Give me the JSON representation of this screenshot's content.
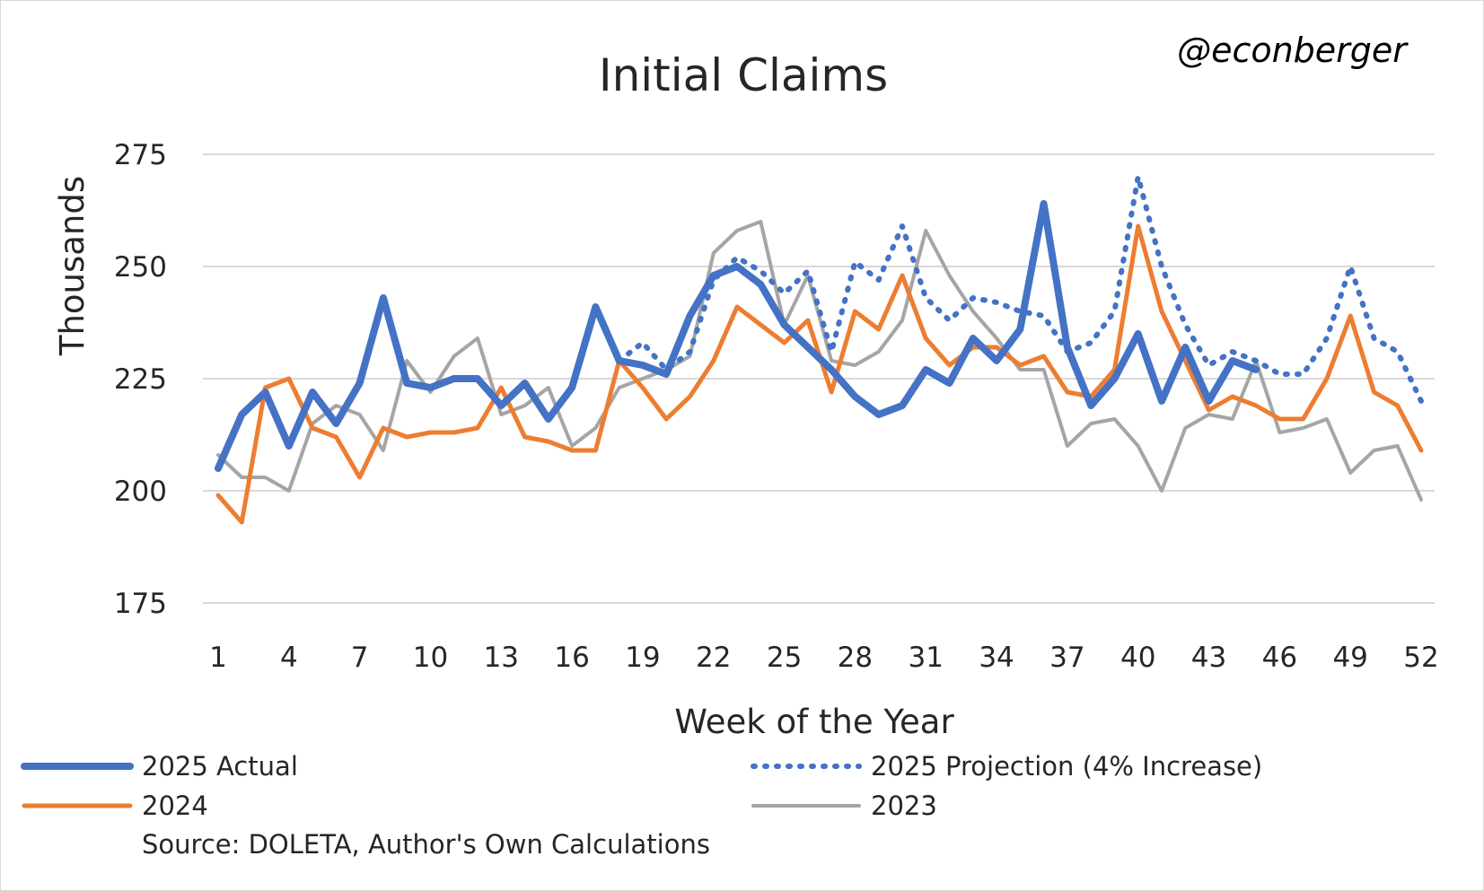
{
  "chart_data": {
    "type": "line",
    "title": "Initial Claims",
    "handle": "@econberger",
    "xlabel": "Week of the Year",
    "ylabel": "Thousands",
    "ylim": [
      175,
      275
    ],
    "yticks": [
      175,
      200,
      225,
      250,
      275
    ],
    "xlim": [
      1,
      52
    ],
    "xticks": [
      1,
      4,
      7,
      10,
      13,
      16,
      19,
      22,
      25,
      28,
      31,
      34,
      37,
      40,
      43,
      46,
      49,
      52
    ],
    "grid": true,
    "legend_position": "bottom",
    "source": "Source: DOLETA, Author's Own Calculations",
    "series": [
      {
        "name": "2025 Actual",
        "color": "#4472C4",
        "style": "solid-thick",
        "x": [
          1,
          2,
          3,
          4,
          5,
          6,
          7,
          8,
          9,
          10,
          11,
          12,
          13,
          14,
          15,
          16,
          17,
          18,
          19,
          20,
          21,
          22,
          23,
          24,
          25,
          26,
          27,
          28,
          29,
          30,
          31,
          32,
          33,
          34,
          35,
          36,
          37,
          38,
          39,
          40,
          41,
          42,
          43,
          44,
          45
        ],
        "values": [
          205,
          217,
          222,
          210,
          222,
          215,
          224,
          243,
          224,
          223,
          225,
          225,
          219,
          224,
          216,
          223,
          241,
          229,
          228,
          226,
          239,
          248,
          250,
          246,
          237,
          232,
          227,
          221,
          217,
          219,
          227,
          224,
          234,
          229,
          236,
          264,
          232,
          219,
          225,
          235,
          220,
          232,
          220,
          229,
          227
        ]
      },
      {
        "name": "2025 Projection (4% Increase)",
        "color": "#4472C4",
        "style": "dotted",
        "x": [
          18,
          19,
          20,
          21,
          22,
          23,
          24,
          25,
          26,
          27,
          28,
          29,
          30,
          31,
          32,
          33,
          34,
          35,
          36,
          37,
          38,
          39,
          40,
          41,
          42,
          43,
          44,
          45,
          46,
          47,
          48,
          49,
          50,
          51,
          52
        ],
        "values": [
          229,
          233,
          227,
          231,
          247,
          252,
          249,
          244,
          249,
          231,
          251,
          247,
          259,
          243,
          238,
          243,
          242,
          240,
          239,
          231,
          233,
          240,
          270,
          250,
          237,
          228,
          231,
          229,
          226,
          226,
          234,
          250,
          234,
          231,
          220
        ]
      },
      {
        "name": "2024",
        "color": "#ED7D31",
        "style": "solid",
        "x": [
          1,
          2,
          3,
          4,
          5,
          6,
          7,
          8,
          9,
          10,
          11,
          12,
          13,
          14,
          15,
          16,
          17,
          18,
          19,
          20,
          21,
          22,
          23,
          24,
          25,
          26,
          27,
          28,
          29,
          30,
          31,
          32,
          33,
          34,
          35,
          36,
          37,
          38,
          39,
          40,
          41,
          42,
          43,
          44,
          45,
          46,
          47,
          48,
          49,
          50,
          51,
          52
        ],
        "values": [
          199,
          193,
          223,
          225,
          214,
          212,
          203,
          214,
          212,
          213,
          213,
          214,
          223,
          212,
          211,
          209,
          209,
          229,
          223,
          216,
          221,
          229,
          241,
          237,
          233,
          238,
          222,
          240,
          236,
          248,
          234,
          228,
          232,
          232,
          228,
          230,
          222,
          221,
          227,
          259,
          240,
          229,
          218,
          221,
          219,
          216,
          216,
          225,
          239,
          222,
          219,
          209
        ]
      },
      {
        "name": "2023",
        "color": "#A5A5A5",
        "style": "solid-thin",
        "x": [
          1,
          2,
          3,
          4,
          5,
          6,
          7,
          8,
          9,
          10,
          11,
          12,
          13,
          14,
          15,
          16,
          17,
          18,
          19,
          20,
          21,
          22,
          23,
          24,
          25,
          26,
          27,
          28,
          29,
          30,
          31,
          32,
          33,
          34,
          35,
          36,
          37,
          38,
          39,
          40,
          41,
          42,
          43,
          44,
          45,
          46,
          47,
          48,
          49,
          50,
          51,
          52
        ],
        "values": [
          208,
          203,
          203,
          200,
          215,
          219,
          217,
          209,
          229,
          222,
          230,
          234,
          217,
          219,
          223,
          210,
          214,
          223,
          225,
          227,
          230,
          253,
          258,
          260,
          237,
          248,
          229,
          228,
          231,
          238,
          258,
          248,
          240,
          234,
          227,
          227,
          210,
          215,
          216,
          210,
          200,
          214,
          217,
          216,
          229,
          213,
          214,
          216,
          204,
          209,
          210,
          198
        ]
      }
    ]
  }
}
